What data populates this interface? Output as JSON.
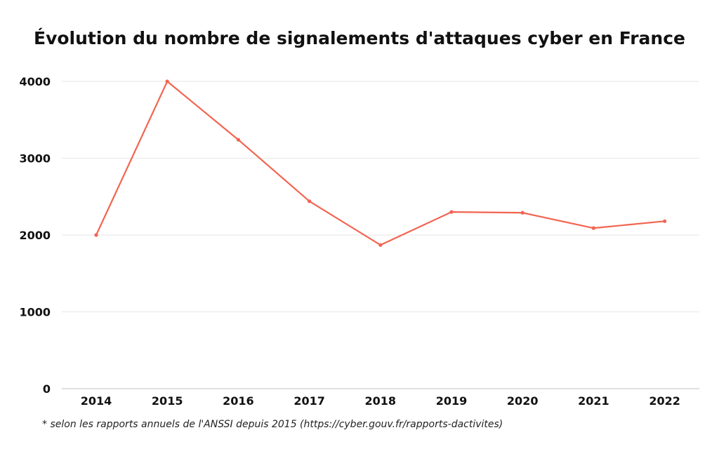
{
  "chart_data": {
    "type": "line",
    "title": "Évolution du nombre de signalements d'attaques cyber en France",
    "xlabel": "",
    "ylabel": "",
    "categories": [
      "2014",
      "2015",
      "2016",
      "2017",
      "2018",
      "2019",
      "2020",
      "2021",
      "2022"
    ],
    "series": [
      {
        "values": [
          2000,
          4000,
          3240,
          2440,
          1870,
          2300,
          2290,
          2090,
          2180
        ]
      }
    ],
    "ylim": [
      0,
      4000
    ],
    "yticks": [
      "0",
      "1000",
      "2000",
      "3000",
      "4000"
    ],
    "grid": "horizontal",
    "line_color": "#f26450"
  },
  "footnote": "* selon les rapports annuels de l'ANSSI depuis 2015 (https://cyber.gouv.fr/rapports-dactivites)"
}
